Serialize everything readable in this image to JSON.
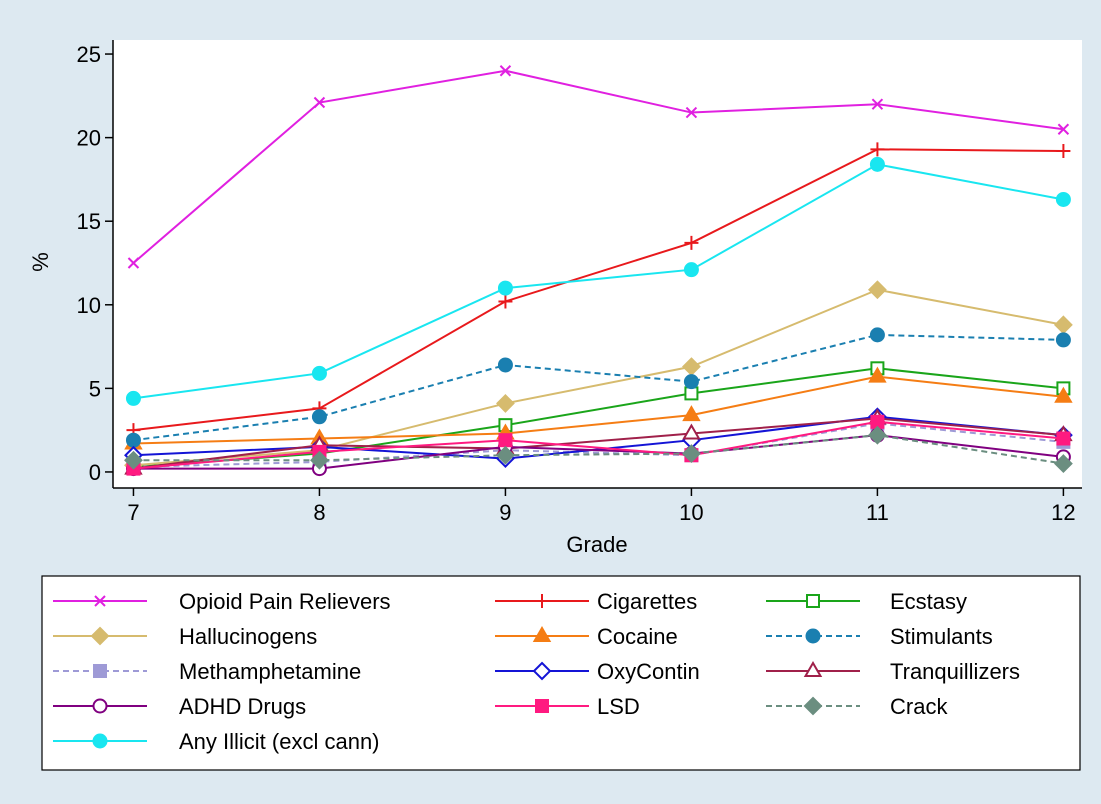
{
  "chart_data": {
    "type": "line",
    "xlabel": "Grade",
    "ylabel": "%",
    "x": [
      7,
      8,
      9,
      10,
      11,
      12
    ],
    "xlim": [
      6.89,
      12.1
    ],
    "xticks": [
      7,
      8,
      9,
      10,
      11,
      12
    ],
    "ylim": [
      -0.96,
      25.84
    ],
    "yticks": [
      0,
      5,
      10,
      15,
      20,
      25
    ],
    "series": [
      {
        "name": "Opioid Pain Relievers",
        "color": "#e020e0",
        "marker": "x",
        "dashed": false,
        "values": [
          12.5,
          22.1,
          24.0,
          21.5,
          22.0,
          20.5
        ]
      },
      {
        "name": "Cigarettes",
        "color": "#e8191c",
        "marker": "plus",
        "dashed": false,
        "values": [
          2.5,
          3.8,
          10.2,
          13.7,
          19.3,
          19.2
        ]
      },
      {
        "name": "Ecstasy",
        "color": "#1aa51a",
        "marker": "square-hollow",
        "dashed": false,
        "values": [
          0.3,
          1.1,
          2.8,
          4.7,
          6.2,
          5.0
        ]
      },
      {
        "name": "Hallucinogens",
        "color": "#d6bb6e",
        "marker": "diamond",
        "dashed": false,
        "values": [
          0.4,
          1.3,
          4.1,
          6.3,
          10.9,
          8.8
        ]
      },
      {
        "name": "Cocaine",
        "color": "#f57d14",
        "marker": "triangle",
        "dashed": false,
        "values": [
          1.7,
          2.0,
          2.3,
          3.4,
          5.7,
          4.5
        ]
      },
      {
        "name": "Stimulants",
        "color": "#1a7fb0",
        "marker": "circle",
        "dashed": true,
        "values": [
          1.9,
          3.3,
          6.4,
          5.4,
          8.2,
          7.9
        ]
      },
      {
        "name": "Methamphetamine",
        "color": "#9e9ad6",
        "marker": "square",
        "dashed": true,
        "values": [
          0.3,
          0.6,
          1.3,
          1.0,
          2.9,
          1.8
        ]
      },
      {
        "name": "OxyContin",
        "color": "#1414d6",
        "marker": "diamond-hollow",
        "dashed": false,
        "values": [
          1.0,
          1.5,
          0.8,
          1.9,
          3.3,
          2.2
        ]
      },
      {
        "name": "Tranquillizers",
        "color": "#a0204a",
        "marker": "triangle-hollow",
        "dashed": false,
        "values": [
          0.2,
          1.6,
          1.4,
          2.3,
          3.2,
          2.2
        ]
      },
      {
        "name": "ADHD Drugs",
        "color": "#800080",
        "marker": "circle-hollow",
        "dashed": false,
        "values": [
          0.2,
          0.2,
          1.5,
          1.1,
          2.2,
          0.9
        ]
      },
      {
        "name": "LSD",
        "color": "#ff1a80",
        "marker": "square",
        "dashed": false,
        "values": [
          0.2,
          1.2,
          1.9,
          1.0,
          3.0,
          2.0
        ]
      },
      {
        "name": "Crack",
        "color": "#6b8e80",
        "marker": "diamond",
        "dashed": true,
        "values": [
          0.7,
          0.7,
          1.0,
          1.1,
          2.2,
          0.5
        ]
      },
      {
        "name": "Any Illicit (excl cann)",
        "color": "#19e6f0",
        "marker": "circle",
        "dashed": false,
        "values": [
          4.4,
          5.9,
          11.0,
          12.1,
          18.4,
          16.3
        ]
      }
    ]
  }
}
